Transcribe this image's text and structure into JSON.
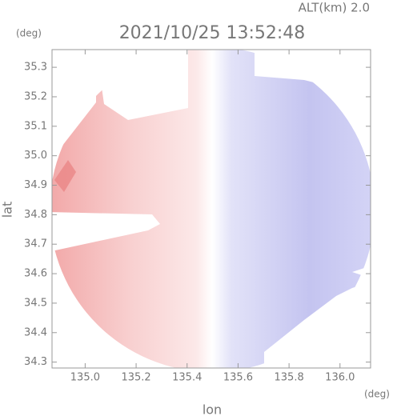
{
  "chart_data": {
    "type": "radar",
    "title": "2021/10/25 13:52:48",
    "subtitle": "ALT(km) 2.0",
    "x_label": "lon",
    "y_label": "lat",
    "x_unit": "(deg)",
    "y_unit": "(deg)",
    "xlim": [
      134.87,
      136.12
    ],
    "ylim": [
      34.28,
      35.36
    ],
    "xticks": [
      {
        "value": 135,
        "label": "135.0"
      },
      135.2,
      135.4,
      135.6,
      135.8,
      {
        "value": 136,
        "label": "136.0"
      }
    ],
    "yticks": [
      34.3,
      34.4,
      34.5,
      34.6,
      34.7,
      34.8,
      34.9,
      {
        "value": 35,
        "label": "35.0"
      },
      35.1,
      35.2,
      35.3
    ]
  }
}
